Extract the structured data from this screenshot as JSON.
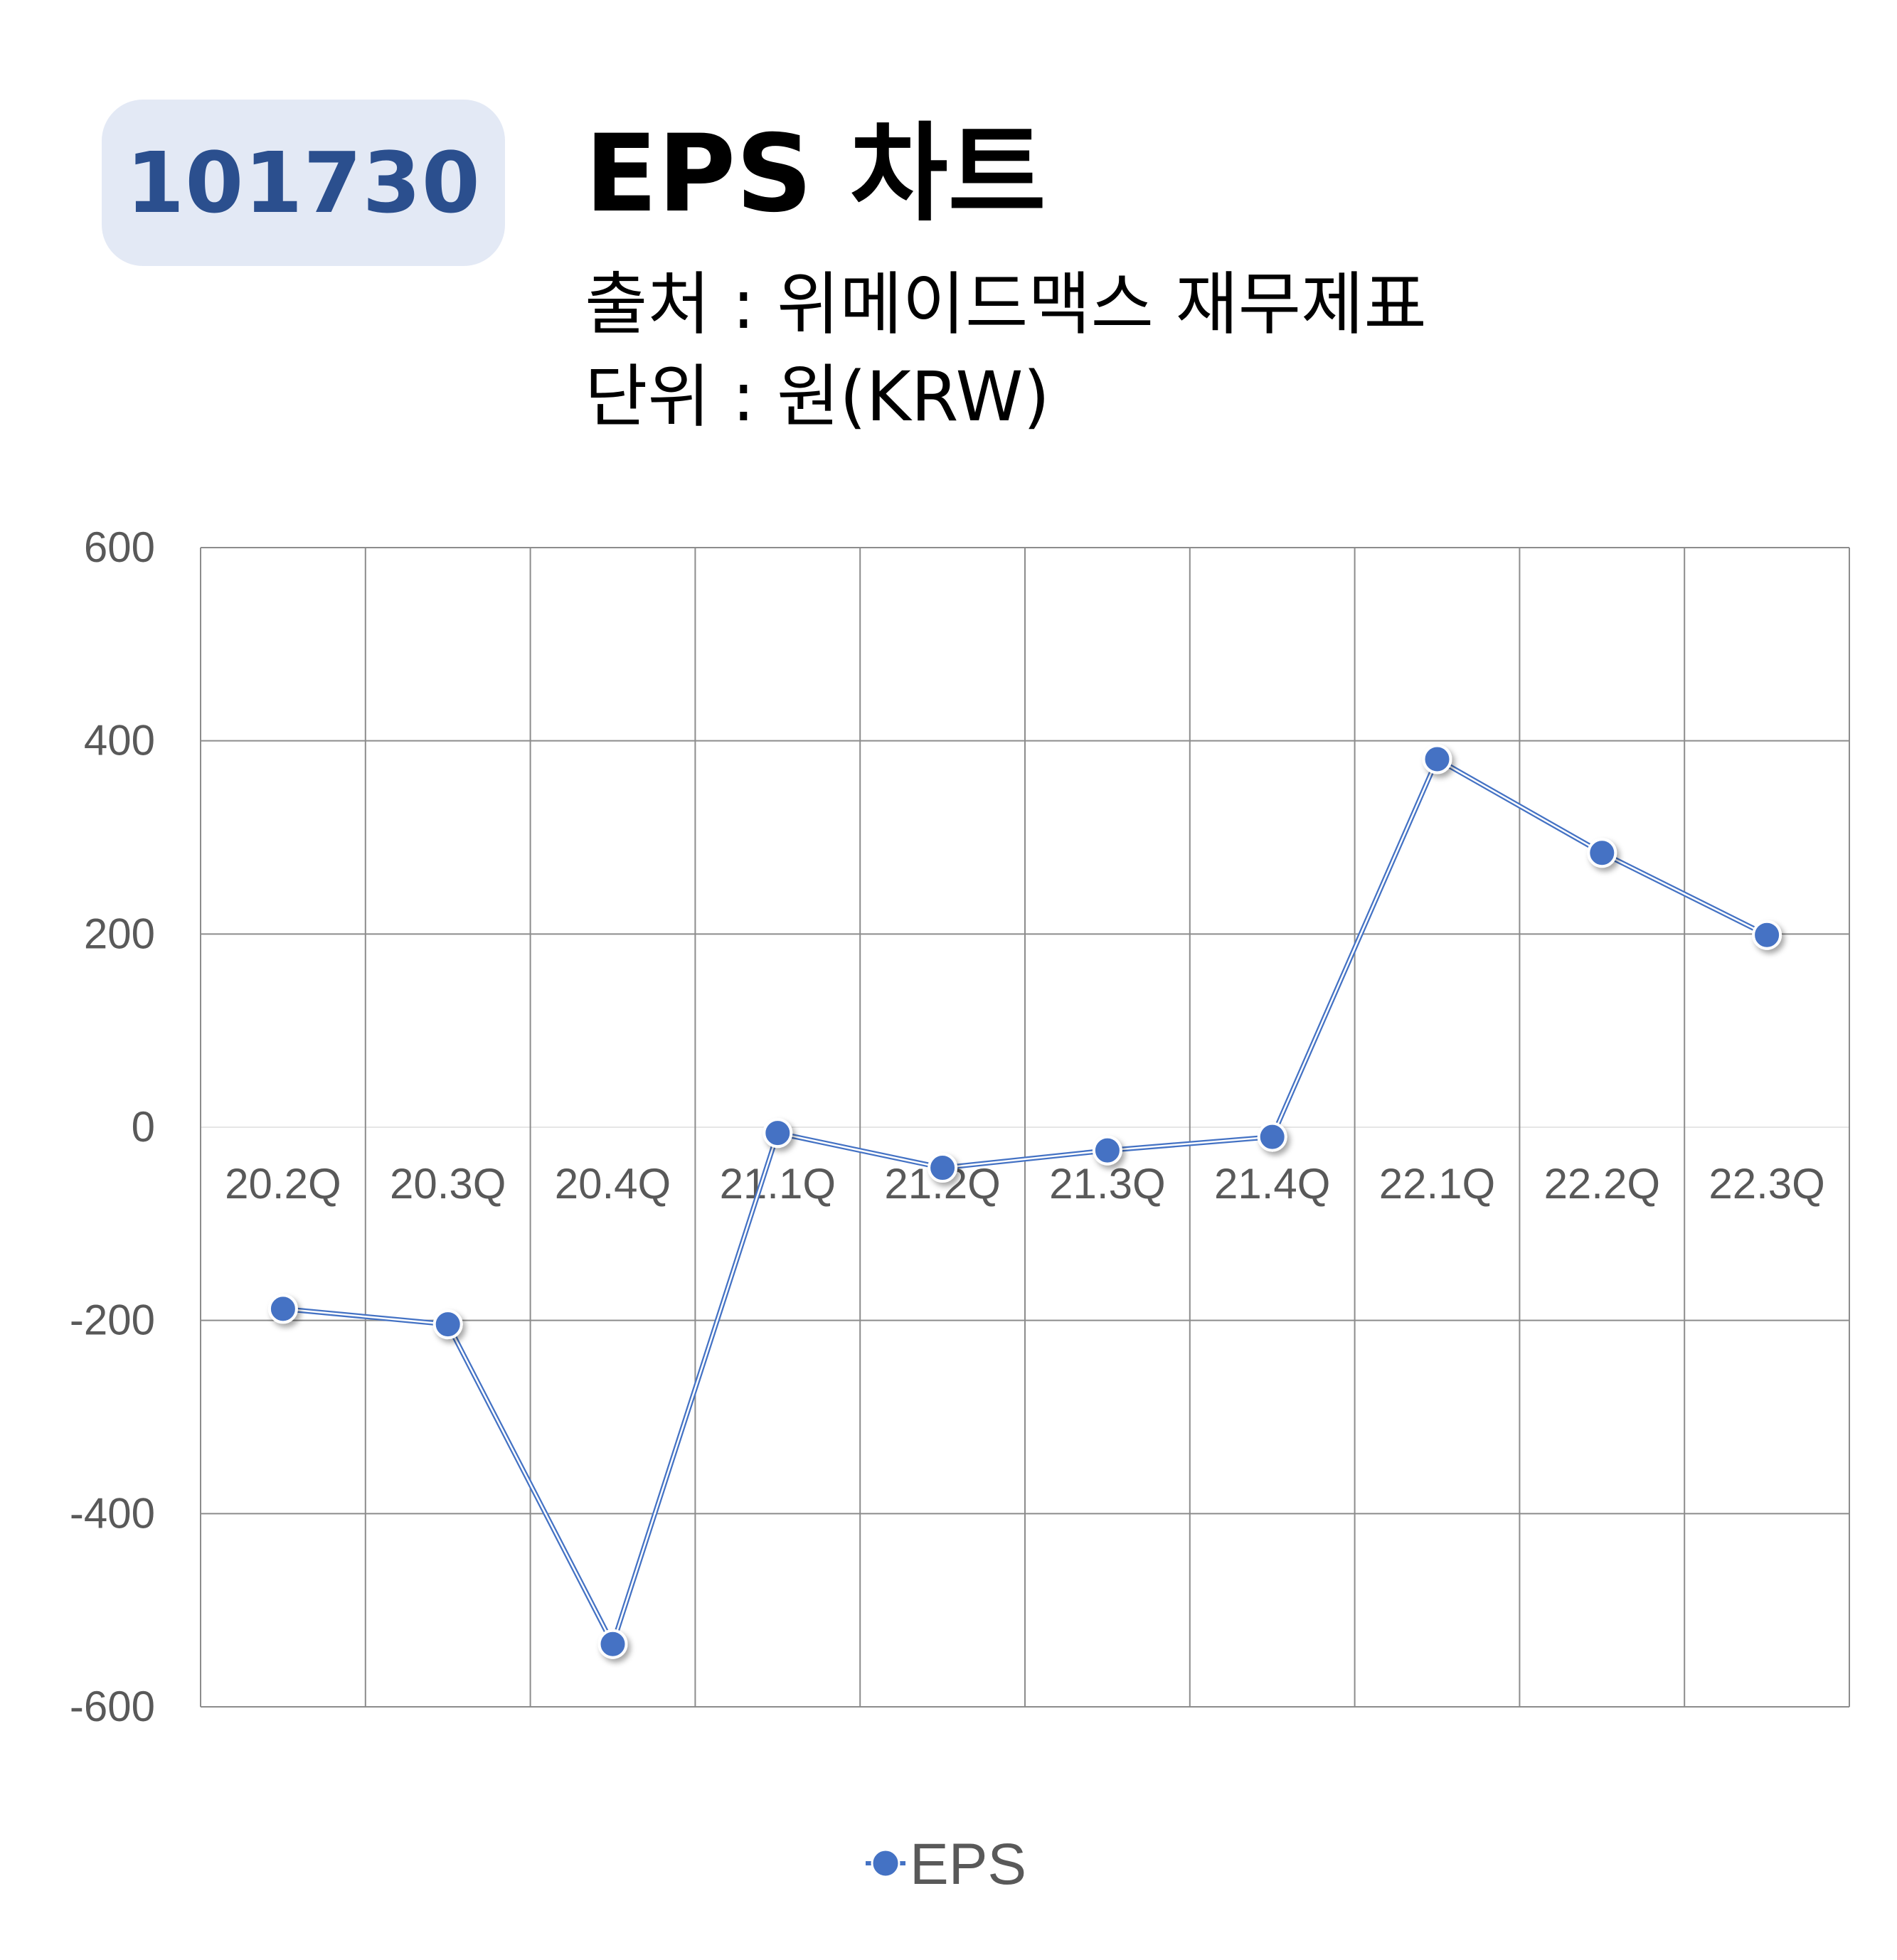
{
  "header": {
    "code": "101730",
    "title": "EPS 차트",
    "source": "출처 : 위메이드맥스 재무제표",
    "unit": "단위 : 원(KRW)"
  },
  "colors": {
    "series": "#4472c4",
    "badge_bg": "#e3e9f5",
    "badge_text": "#2b4f8e",
    "grid": "#8c8c8c",
    "axis_text": "#595959"
  },
  "chart_data": {
    "type": "line",
    "categories": [
      "20.2Q",
      "20.3Q",
      "20.4Q",
      "21.1Q",
      "21.2Q",
      "21.3Q",
      "21.4Q",
      "22.1Q",
      "22.2Q",
      "22.3Q"
    ],
    "series": [
      {
        "name": "EPS",
        "values": [
          -188,
          -204,
          -535,
          -6,
          -42,
          -24,
          -10,
          381,
          284,
          199
        ]
      }
    ],
    "y_ticks": [
      "600",
      "400",
      "200",
      "0",
      "-200",
      "-400",
      "-600"
    ],
    "ylim": [
      -600,
      600
    ],
    "grid": true,
    "legend": "bottom"
  }
}
